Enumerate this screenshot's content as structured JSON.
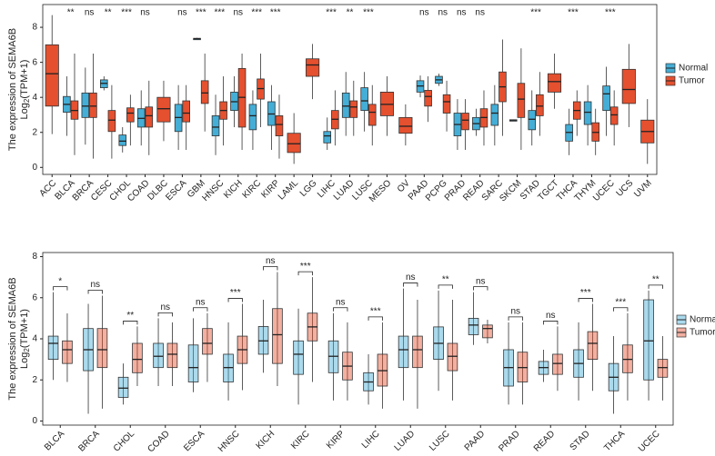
{
  "chart_data": [
    {
      "type": "box",
      "ylabel": [
        "The expression of SEMA6B",
        [
          "Log",
          "2",
          "(TPM+1)"
        ]
      ],
      "ylim": [
        -0.4,
        9.3
      ],
      "yticks": [
        0,
        2,
        4,
        6,
        8
      ],
      "box_opacity": 1,
      "legend": "right",
      "categories": [
        "ACC",
        "BLCA",
        "BRCA",
        "CESC",
        "CHOL",
        "COAD",
        "DLBC",
        "ESCA",
        "GBM",
        "HNSC",
        "KICH",
        "KIRC",
        "KIRP",
        "LAML",
        "LGG",
        "LIHC",
        "LUAD",
        "LUSC",
        "MESO",
        "OV",
        "PAAD",
        "PCPG",
        "PRAD",
        "READ",
        "SARC",
        "SKCM",
        "STAD",
        "TGCT",
        "THCA",
        "THYM",
        "UCEC",
        "UCS",
        "UVM"
      ],
      "significance": [
        null,
        "**",
        "ns",
        "**",
        "***",
        "ns",
        null,
        "ns",
        "***",
        "***",
        "ns",
        "***",
        "***",
        null,
        null,
        "***",
        "**",
        "***",
        null,
        null,
        "ns",
        "ns",
        "ns",
        "ns",
        null,
        null,
        "***",
        null,
        "***",
        null,
        "***",
        null,
        null
      ],
      "series": [
        {
          "name": "Normal",
          "color": "#45aed6",
          "values": [
            null,
            {
              "low": 1.8,
              "q1": 3.15,
              "median": 3.6,
              "q3": 4.05,
              "high": 5.2
            },
            {
              "low": 1.3,
              "q1": 2.85,
              "median": 3.5,
              "q3": 4.25,
              "high": 5.7
            },
            {
              "low": 4.4,
              "q1": 4.55,
              "median": 4.8,
              "q3": 5.0,
              "high": 5.2
            },
            {
              "low": 0.85,
              "q1": 1.25,
              "median": 1.5,
              "q3": 1.85,
              "high": 2.3
            },
            {
              "low": 1.25,
              "q1": 2.3,
              "median": 2.8,
              "q3": 3.35,
              "high": 4.4
            },
            null,
            {
              "low": 1.0,
              "q1": 2.05,
              "median": 2.85,
              "q3": 3.6,
              "high": 4.7
            },
            {
              "low": 7.3,
              "q1": 7.33,
              "median": 7.35,
              "q3": 7.37,
              "high": 7.4
            },
            {
              "low": 0.7,
              "q1": 1.8,
              "median": 2.3,
              "q3": 2.95,
              "high": 4.15
            },
            {
              "low": 2.3,
              "q1": 3.25,
              "median": 3.75,
              "q3": 4.3,
              "high": 5.2
            },
            {
              "low": 1.0,
              "q1": 2.15,
              "median": 2.95,
              "q3": 3.6,
              "high": 4.4
            },
            {
              "low": 1.0,
              "q1": 2.4,
              "median": 3.05,
              "q3": 3.75,
              "high": 4.7
            },
            null,
            null,
            {
              "low": 1.0,
              "q1": 1.4,
              "median": 1.8,
              "q3": 2.05,
              "high": 2.85
            },
            {
              "low": 1.8,
              "q1": 2.85,
              "median": 3.5,
              "q3": 4.25,
              "high": 5.45
            },
            {
              "low": 2.05,
              "q1": 3.25,
              "median": 3.8,
              "q3": 4.55,
              "high": 5.45
            },
            null,
            null,
            {
              "low": 4.0,
              "q1": 4.3,
              "median": 4.65,
              "q3": 4.95,
              "high": 5.25
            },
            {
              "low": 4.65,
              "q1": 4.8,
              "median": 5.0,
              "q3": 5.2,
              "high": 5.35
            },
            {
              "low": 1.0,
              "q1": 1.8,
              "median": 2.45,
              "q3": 3.1,
              "high": 3.9
            },
            {
              "low": 1.8,
              "q1": 2.15,
              "median": 2.5,
              "q3": 2.85,
              "high": 3.35
            },
            {
              "low": 1.25,
              "q1": 2.4,
              "median": 3.1,
              "q3": 3.6,
              "high": 4.7
            },
            {
              "low": 2.66,
              "q1": 2.68,
              "median": 2.7,
              "q3": 2.72,
              "high": 2.74
            },
            {
              "low": 1.25,
              "q1": 2.15,
              "median": 2.75,
              "q3": 3.25,
              "high": 4.4
            },
            null,
            {
              "low": 0.7,
              "q1": 1.5,
              "median": 2.0,
              "q3": 2.45,
              "high": 3.35
            },
            {
              "low": 1.25,
              "q1": 2.45,
              "median": 3.15,
              "q3": 3.75,
              "high": 4.7
            },
            {
              "low": 1.8,
              "q1": 3.25,
              "median": 4.2,
              "q3": 4.65,
              "high": 5.75
            },
            null,
            null
          ]
        },
        {
          "name": "Tumor",
          "color": "#e5502f",
          "values": [
            {
              "low": 1.9,
              "q1": 3.5,
              "median": 5.35,
              "q3": 7.0,
              "high": 8.7
            },
            {
              "low": 0.7,
              "q1": 2.75,
              "median": 3.25,
              "q3": 3.8,
              "high": 6.5
            },
            {
              "low": 0.5,
              "q1": 2.85,
              "median": 3.5,
              "q3": 4.25,
              "high": 6.5
            },
            {
              "low": 0.5,
              "q1": 2.05,
              "median": 2.7,
              "q3": 3.25,
              "high": 4.7
            },
            {
              "low": 1.25,
              "q1": 2.6,
              "median": 3.1,
              "q3": 3.4,
              "high": 4.15
            },
            {
              "low": 0.7,
              "q1": 2.3,
              "median": 2.95,
              "q3": 3.45,
              "high": 4.95
            },
            {
              "low": 1.5,
              "q1": 2.6,
              "median": 3.35,
              "q3": 4.0,
              "high": 4.95
            },
            {
              "low": 1.0,
              "q1": 2.6,
              "median": 3.1,
              "q3": 3.8,
              "high": 4.7
            },
            {
              "low": 2.05,
              "q1": 3.65,
              "median": 4.25,
              "q3": 4.95,
              "high": 6.5
            },
            {
              "low": 1.25,
              "q1": 2.75,
              "median": 3.25,
              "q3": 3.75,
              "high": 5.2
            },
            {
              "low": 1.0,
              "q1": 2.3,
              "median": 4.0,
              "q3": 5.65,
              "high": 6.5
            },
            {
              "low": 2.3,
              "q1": 3.9,
              "median": 4.5,
              "q3": 5.05,
              "high": 6.5
            },
            {
              "low": 0.5,
              "q1": 1.8,
              "median": 2.45,
              "q3": 2.95,
              "high": 4.15
            },
            {
              "low": 0.2,
              "q1": 0.85,
              "median": 1.35,
              "q3": 1.95,
              "high": 3.1
            },
            {
              "low": 3.9,
              "q1": 5.2,
              "median": 5.85,
              "q3": 6.2,
              "high": 7.05
            },
            {
              "low": 1.25,
              "q1": 2.2,
              "median": 2.75,
              "q3": 3.25,
              "high": 4.4
            },
            {
              "low": 1.8,
              "q1": 2.85,
              "median": 3.45,
              "q3": 3.8,
              "high": 4.95
            },
            {
              "low": 1.25,
              "q1": 2.4,
              "median": 3.15,
              "q3": 3.6,
              "high": 4.7
            },
            {
              "low": 1.8,
              "q1": 2.95,
              "median": 3.6,
              "q3": 4.3,
              "high": 5.2
            },
            {
              "low": 1.25,
              "q1": 1.95,
              "median": 2.35,
              "q3": 2.85,
              "high": 3.6
            },
            {
              "low": 2.6,
              "q1": 3.5,
              "median": 4.05,
              "q3": 4.4,
              "high": 5.2
            },
            {
              "low": 2.05,
              "q1": 3.1,
              "median": 3.75,
              "q3": 4.15,
              "high": 4.95
            },
            {
              "low": 1.0,
              "q1": 2.15,
              "median": 2.7,
              "q3": 3.1,
              "high": 3.9
            },
            {
              "low": 1.25,
              "q1": 2.3,
              "median": 2.85,
              "q3": 3.35,
              "high": 4.4
            },
            {
              "low": 1.8,
              "q1": 3.75,
              "median": 4.6,
              "q3": 5.45,
              "high": 7.3
            },
            {
              "low": 1.0,
              "q1": 2.85,
              "median": 3.9,
              "q3": 4.8,
              "high": 6.8
            },
            {
              "low": 1.8,
              "q1": 2.95,
              "median": 3.5,
              "q3": 4.15,
              "high": 5.45
            },
            {
              "low": 3.35,
              "q1": 4.3,
              "median": 4.9,
              "q3": 5.35,
              "high": 6.5
            },
            {
              "low": 1.8,
              "q1": 2.75,
              "median": 3.25,
              "q3": 3.75,
              "high": 4.4
            },
            {
              "low": 0.7,
              "q1": 1.5,
              "median": 2.0,
              "q3": 2.55,
              "high": 3.35
            },
            {
              "low": 1.25,
              "q1": 2.45,
              "median": 3.0,
              "q3": 3.45,
              "high": 4.4
            },
            {
              "low": 2.3,
              "q1": 3.65,
              "median": 4.45,
              "q3": 5.6,
              "high": 7.05
            },
            {
              "low": 0.2,
              "q1": 1.4,
              "median": 2.05,
              "q3": 2.7,
              "high": 3.9
            }
          ]
        }
      ]
    },
    {
      "type": "paired-box",
      "ylabel": [
        "The expression of SEMA6B",
        [
          "Log",
          "2",
          "(TPM+1)"
        ]
      ],
      "ylim": [
        -0.2,
        8.2
      ],
      "yticks": [
        0,
        2,
        4,
        6,
        8
      ],
      "box_opacity": 0.45,
      "legend": "right",
      "categories": [
        "BLCA",
        "BRCA",
        "CHOL",
        "COAD",
        "ESCA",
        "HNSC",
        "KICH",
        "KIRC",
        "KIRP",
        "LIHC",
        "LUAD",
        "LUSC",
        "PAAD",
        "PRAD",
        "READ",
        "STAD",
        "THCA",
        "UCEC"
      ],
      "significance": [
        "*",
        "ns",
        "**",
        "ns",
        "ns",
        "***",
        "ns",
        "***",
        "ns",
        "***",
        "ns",
        "**",
        "ns",
        "ns",
        "ns",
        "***",
        "***",
        "**"
      ],
      "series": [
        {
          "name": "Norma",
          "color": "#45aed6",
          "values": [
            {
              "low": 2.0,
              "q1": 3.0,
              "median": 3.78,
              "q3": 4.13,
              "high": 6.27
            },
            {
              "low": 0.35,
              "q1": 2.45,
              "median": 3.47,
              "q3": 4.5,
              "high": 5.7
            },
            {
              "low": 0.8,
              "q1": 1.15,
              "median": 1.6,
              "q3": 2.13,
              "high": 2.8
            },
            {
              "low": 1.7,
              "q1": 2.6,
              "median": 3.15,
              "q3": 3.78,
              "high": 5.0
            },
            {
              "low": 1.4,
              "q1": 1.9,
              "median": 2.6,
              "q3": 3.7,
              "high": 5.0
            },
            {
              "low": 1.0,
              "q1": 1.9,
              "median": 2.6,
              "q3": 3.25,
              "high": 4.8
            },
            {
              "low": 2.35,
              "q1": 3.25,
              "median": 3.9,
              "q3": 4.6,
              "high": 5.9
            },
            {
              "low": 0.8,
              "q1": 2.27,
              "median": 3.25,
              "q3": 3.9,
              "high": 5.47
            },
            {
              "low": 1.0,
              "q1": 2.35,
              "median": 3.15,
              "q3": 3.9,
              "high": 5.25
            },
            {
              "low": 0.8,
              "q1": 1.47,
              "median": 1.9,
              "q3": 2.35,
              "high": 3.25
            },
            {
              "low": 1.0,
              "q1": 2.6,
              "median": 3.47,
              "q3": 4.13,
              "high": 6.45
            },
            {
              "low": 1.47,
              "q1": 3.0,
              "median": 3.78,
              "q3": 4.58,
              "high": 6.35
            },
            {
              "low": 3.7,
              "q1": 4.2,
              "median": 4.67,
              "q3": 5.0,
              "high": 6.27
            },
            {
              "low": 0.8,
              "q1": 1.7,
              "median": 2.6,
              "q3": 3.47,
              "high": 4.8
            },
            {
              "low": 1.9,
              "q1": 2.27,
              "median": 2.6,
              "q3": 2.9,
              "high": 3.47
            },
            {
              "low": 1.0,
              "q1": 2.13,
              "median": 2.8,
              "q3": 3.47,
              "high": 4.8
            },
            {
              "low": 0.35,
              "q1": 1.47,
              "median": 2.13,
              "q3": 2.8,
              "high": 4.13
            },
            {
              "low": 1.0,
              "q1": 2.0,
              "median": 3.9,
              "q3": 5.9,
              "high": 6.35
            }
          ]
        },
        {
          "name": "Tumor",
          "color": "#e5502f",
          "values": [
            {
              "low": 1.9,
              "q1": 2.8,
              "median": 3.47,
              "q3": 3.9,
              "high": 5.24
            },
            {
              "low": 0.6,
              "q1": 2.6,
              "median": 3.47,
              "q3": 4.5,
              "high": 6.1
            },
            {
              "low": 1.7,
              "q1": 2.35,
              "median": 3.0,
              "q3": 3.78,
              "high": 4.6
            },
            {
              "low": 1.7,
              "q1": 2.6,
              "median": 3.25,
              "q3": 3.78,
              "high": 4.8
            },
            {
              "low": 1.9,
              "q1": 3.25,
              "median": 3.78,
              "q3": 4.5,
              "high": 5.25
            },
            {
              "low": 1.5,
              "q1": 2.8,
              "median": 3.47,
              "q3": 4.13,
              "high": 5.7
            },
            {
              "low": 1.7,
              "q1": 2.8,
              "median": 4.2,
              "q3": 5.47,
              "high": 7.25
            },
            {
              "low": 1.9,
              "q1": 3.9,
              "median": 4.58,
              "q3": 5.25,
              "high": 7.0
            },
            {
              "low": 1.0,
              "q1": 2.0,
              "median": 2.67,
              "q3": 3.35,
              "high": 4.8
            },
            {
              "low": 0.6,
              "q1": 1.7,
              "median": 2.45,
              "q3": 3.25,
              "high": 4.8
            },
            {
              "low": 0.6,
              "q1": 2.6,
              "median": 3.47,
              "q3": 4.13,
              "high": 5.9
            },
            {
              "low": 1.0,
              "q1": 2.45,
              "median": 3.15,
              "q3": 3.78,
              "high": 5.9
            },
            {
              "low": 3.78,
              "q1": 4.05,
              "median": 4.5,
              "q3": 4.67,
              "high": 4.93
            },
            {
              "low": 0.8,
              "q1": 1.9,
              "median": 2.6,
              "q3": 3.35,
              "high": 4.8
            },
            {
              "low": 1.47,
              "q1": 2.27,
              "median": 2.8,
              "q3": 3.25,
              "high": 4.6
            },
            {
              "low": 1.47,
              "q1": 3.0,
              "median": 3.78,
              "q3": 4.35,
              "high": 5.7
            },
            {
              "low": 1.0,
              "q1": 2.35,
              "median": 3.0,
              "q3": 3.7,
              "high": 5.25
            },
            {
              "low": 1.0,
              "q1": 2.13,
              "median": 2.6,
              "q3": 3.0,
              "high": 4.13
            }
          ]
        }
      ]
    }
  ]
}
